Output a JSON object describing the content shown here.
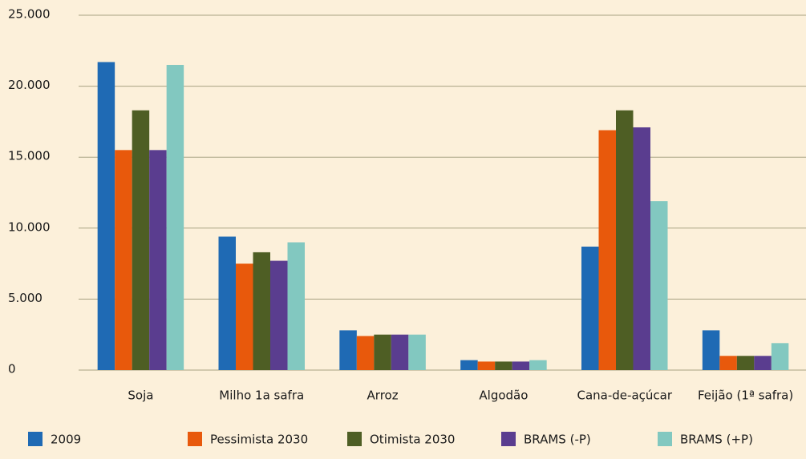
{
  "chart_data": {
    "type": "bar",
    "categories": [
      "Soja",
      "Milho 1a safra",
      "Arroz",
      "Algodão",
      "Cana-de-açúcar",
      "Feijão (1ª safra)"
    ],
    "series": [
      {
        "name": "2009",
        "color": "#1f6ab4",
        "values": [
          21700,
          9400,
          2800,
          700,
          8700,
          2800
        ]
      },
      {
        "name": "Pessimista 2030",
        "color": "#e8590c",
        "values": [
          15500,
          7500,
          2400,
          600,
          16900,
          1000
        ]
      },
      {
        "name": "Otimista 2030",
        "color": "#4e5e24",
        "values": [
          18300,
          8300,
          2500,
          600,
          18300,
          1000
        ]
      },
      {
        "name": "BRAMS (-P)",
        "color": "#5a3d8f",
        "values": [
          15500,
          7700,
          2500,
          600,
          17100,
          1000
        ]
      },
      {
        "name": "BRAMS (+P)",
        "color": "#82c8c0",
        "values": [
          21500,
          9000,
          2500,
          700,
          11900,
          1900
        ]
      }
    ],
    "ylim": [
      0,
      25000
    ],
    "yticks": [
      0,
      {
        "value": 5000,
        "label": "5.000"
      },
      {
        "value": 10000,
        "label": "10.000"
      },
      {
        "value": 15000,
        "label": "15.000"
      },
      {
        "value": 20000,
        "label": "20.000"
      },
      {
        "value": 25000,
        "label": "25.000"
      }
    ],
    "grid": true
  }
}
